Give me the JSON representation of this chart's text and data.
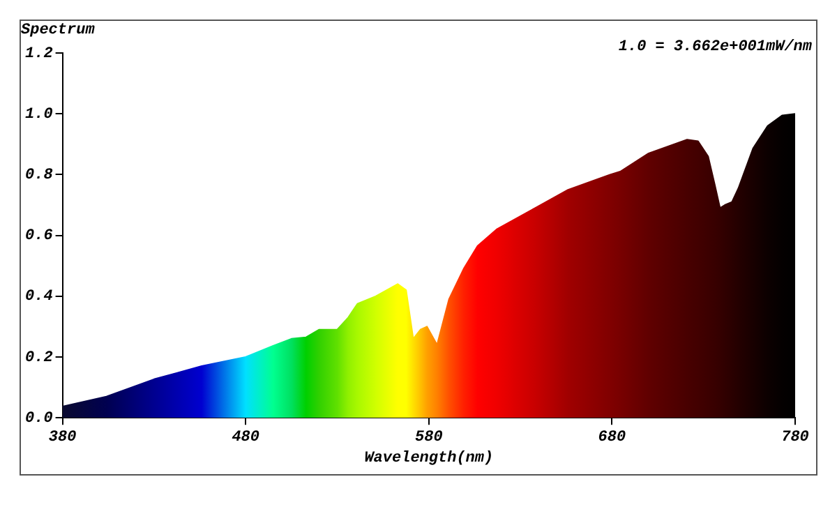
{
  "chart_data": {
    "type": "area",
    "ylabel": "Spectrum",
    "xlabel": "Wavelength(nm)",
    "annotations": [
      "1.0 = 3.662e+001mW/nm"
    ],
    "x": [
      380,
      404,
      430,
      456,
      480,
      495,
      505,
      513,
      520,
      530,
      536,
      541,
      551,
      563,
      567.6,
      571.5,
      575.4,
      579,
      584.5,
      591,
      599,
      606.6,
      617,
      638,
      656,
      679,
      684.5,
      700,
      721,
      727,
      732.5,
      736,
      739,
      741.6,
      745.5,
      749,
      757,
      765,
      773,
      780
    ],
    "values": [
      0.037,
      0.07,
      0.127,
      0.17,
      0.2,
      0.237,
      0.26,
      0.265,
      0.29,
      0.29,
      0.33,
      0.375,
      0.4,
      0.44,
      0.42,
      0.26,
      0.29,
      0.3,
      0.24,
      0.39,
      0.49,
      0.565,
      0.62,
      0.69,
      0.75,
      0.8,
      0.81,
      0.87,
      0.915,
      0.91,
      0.86,
      0.77,
      0.69,
      0.7,
      0.71,
      0.755,
      0.886,
      0.96,
      0.995,
      1.0
    ],
    "colors": [
      "#0a0a30",
      "#000050",
      "#000090",
      "#0000d0",
      "#00e0ff",
      "#00ff90",
      "#00e060",
      "#00d000",
      "#30d000",
      "#60e000",
      "#90f000",
      "#a8f800",
      "#d0ff00",
      "#ffff00",
      "#ffff00",
      "#ffe000",
      "#ffc000",
      "#ffa000",
      "#ff8000",
      "#ff5000",
      "#ff2000",
      "#ff0000",
      "#f00000",
      "#c80000",
      "#a00000",
      "#800000",
      "#780000",
      "#600000",
      "#480000",
      "#420000",
      "#3c0000",
      "#380000",
      "#340000",
      "#300000",
      "#2a0000",
      "#240000",
      "#180000",
      "#0c0000",
      "#040000",
      "#000000"
    ],
    "xlim": [
      380,
      780
    ],
    "xticks": [
      380,
      480,
      580,
      680,
      780
    ],
    "ylim": [
      0,
      1.2
    ],
    "yticks": [
      {
        "value": 0,
        "label": "0.0"
      },
      {
        "value": 0.2,
        "label": "0.2"
      },
      {
        "value": 0.4,
        "label": "0.4"
      },
      {
        "value": 0.6,
        "label": "0.6"
      },
      {
        "value": 0.8,
        "label": "0.8"
      },
      {
        "value": 1.0,
        "label": "1.0"
      },
      {
        "value": 1.2,
        "label": "1.2"
      }
    ],
    "grid": false,
    "legend": false
  }
}
